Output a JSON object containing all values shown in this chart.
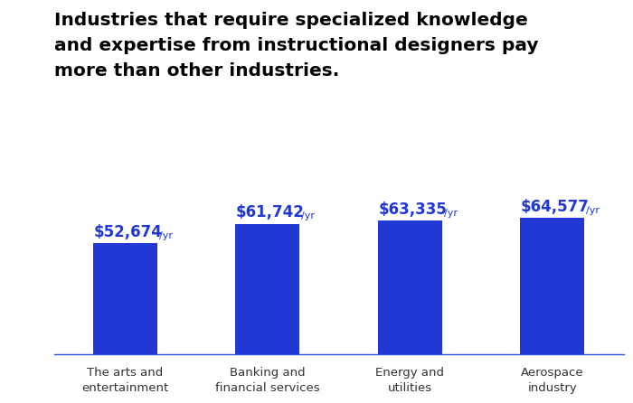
{
  "categories": [
    "The arts and\nentertainment",
    "Banking and\nfinancial services",
    "Energy and\nutilities",
    "Aerospace\nindustry"
  ],
  "values": [
    52674,
    61742,
    63335,
    64577
  ],
  "labels_main": [
    "$52,674",
    "$61,742",
    "$63,335",
    "$64,577"
  ],
  "label_suffix": "/yr",
  "bar_color": "#2138d4",
  "title_line1": "Industries that require specialized knowledge",
  "title_line2": "and expertise from instructional designers pay",
  "title_line3": "more than other industries.",
  "title_fontsize": 14.5,
  "label_main_fontsize": 12,
  "label_suffix_fontsize": 8,
  "xtick_fontsize": 9.5,
  "background_color": "#ffffff",
  "ylim": [
    0,
    80000
  ],
  "bar_width": 0.45,
  "spine_color": "#3355dd"
}
